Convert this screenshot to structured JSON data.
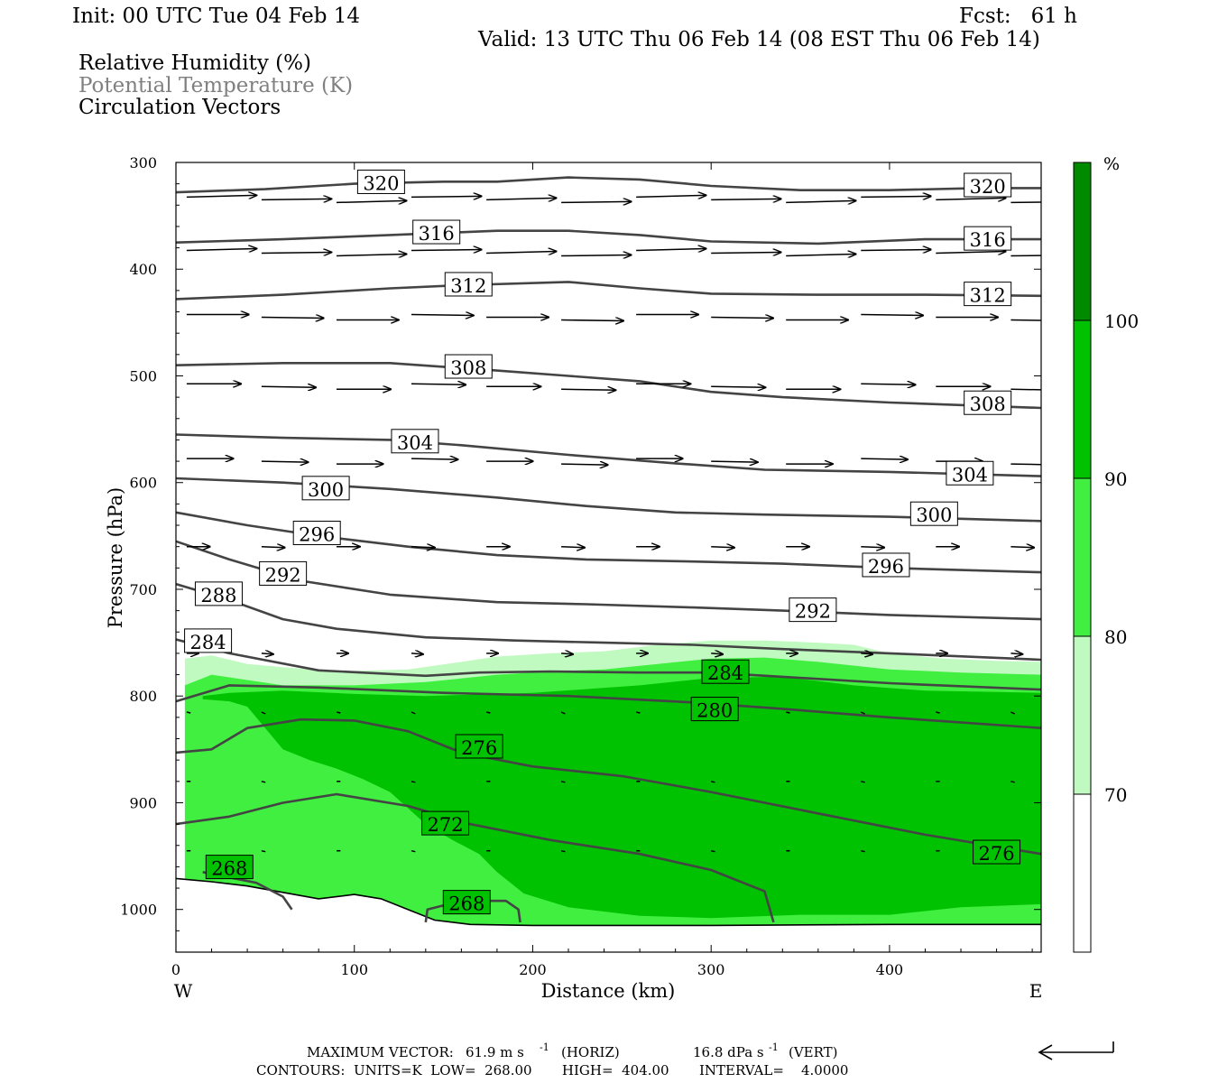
{
  "header": {
    "init": "Init: 00 UTC Tue 04 Feb 14",
    "fcst": "Fcst:   61 h",
    "valid": "Valid: 13 UTC Thu 06 Feb 14 (08 EST Thu 06 Feb 14)",
    "fields": [
      {
        "text": "Relative Humidity (%)",
        "color": "#000000"
      },
      {
        "text": "Potential Temperature (K)",
        "color": "#808080"
      },
      {
        "text": "Circulation Vectors",
        "color": "#000000"
      }
    ]
  },
  "footer": {
    "max_vector_label": "MAXIMUM VECTOR:",
    "horiz_value": "61.9 m s",
    "horiz_unit": "(HORIZ)",
    "vert_value": "16.8 dPa s",
    "vert_unit": "(VERT)",
    "exponent": "-1",
    "contours_line": "CONTOURS:  UNITS=K  LOW=  268.00       HIGH=  404.00       INTERVAL=    4.0000"
  },
  "colors": {
    "rh70": "#c0fac0",
    "rh80": "#40ef40",
    "rh90": "#00c200",
    "rh100": "#008a00",
    "theta": "#444444"
  },
  "chart_data": {
    "type": "cross-section",
    "xlabel": "Distance (km)",
    "ylabel": "Pressure (hPa)",
    "xlim": [
      0,
      485
    ],
    "ylim": [
      300,
      1040
    ],
    "y_inverted": true,
    "x_ticks": [
      0,
      100,
      200,
      300,
      400
    ],
    "y_ticks": [
      300,
      400,
      500,
      600,
      700,
      800,
      900,
      1000
    ],
    "west_label": "W",
    "east_label": "E",
    "colorbar": {
      "unit": "%",
      "levels": [
        70,
        80,
        90,
        100
      ],
      "colors": [
        "#ffffff",
        "#c0fac0",
        "#40ef40",
        "#00c200",
        "#008a00"
      ]
    },
    "ground": [
      [
        0,
        971
      ],
      [
        20,
        974
      ],
      [
        40,
        978
      ],
      [
        60,
        984
      ],
      [
        80,
        990
      ],
      [
        100,
        986
      ],
      [
        115,
        990
      ],
      [
        130,
        1000
      ],
      [
        145,
        1010
      ],
      [
        165,
        1014
      ],
      [
        200,
        1015
      ],
      [
        300,
        1015
      ],
      [
        400,
        1014
      ],
      [
        485,
        1014
      ]
    ],
    "rh_regions": [
      {
        "level": 70,
        "top": [
          [
            5,
            765
          ],
          [
            20,
            762
          ],
          [
            40,
            770
          ],
          [
            60,
            773
          ],
          [
            90,
            777
          ],
          [
            130,
            775
          ],
          [
            160,
            768
          ],
          [
            180,
            763
          ],
          [
            210,
            760
          ],
          [
            240,
            758
          ],
          [
            270,
            752
          ],
          [
            300,
            748
          ],
          [
            330,
            748
          ],
          [
            360,
            750
          ],
          [
            380,
            752
          ],
          [
            400,
            760
          ],
          [
            430,
            765
          ],
          [
            460,
            767
          ],
          [
            485,
            768
          ]
        ]
      },
      {
        "level": 80,
        "top": [
          [
            5,
            790
          ],
          [
            20,
            780
          ],
          [
            40,
            785
          ],
          [
            60,
            790
          ],
          [
            100,
            790
          ],
          [
            140,
            787
          ],
          [
            180,
            780
          ],
          [
            210,
            777
          ],
          [
            240,
            775
          ],
          [
            270,
            770
          ],
          [
            300,
            765
          ],
          [
            330,
            764
          ],
          [
            360,
            768
          ],
          [
            400,
            775
          ],
          [
            440,
            778
          ],
          [
            485,
            780
          ]
        ]
      },
      {
        "level": 90,
        "top": [
          [
            15,
            800
          ],
          [
            30,
            797
          ],
          [
            60,
            795
          ],
          [
            100,
            798
          ],
          [
            140,
            800
          ],
          [
            200,
            797
          ],
          [
            260,
            790
          ],
          [
            300,
            783
          ],
          [
            340,
            782
          ],
          [
            380,
            790
          ],
          [
            420,
            795
          ],
          [
            485,
            797
          ]
        ],
        "bottom": [
          [
            485,
            995
          ],
          [
            440,
            998
          ],
          [
            400,
            1005
          ],
          [
            350,
            1005
          ],
          [
            300,
            1008
          ],
          [
            260,
            1006
          ],
          [
            220,
            998
          ],
          [
            195,
            985
          ],
          [
            180,
            965
          ],
          [
            170,
            948
          ],
          [
            155,
            935
          ],
          [
            140,
            920
          ],
          [
            130,
            905
          ],
          [
            120,
            890
          ],
          [
            105,
            878
          ],
          [
            90,
            868
          ],
          [
            75,
            860
          ],
          [
            60,
            850
          ],
          [
            50,
            830
          ],
          [
            40,
            810
          ],
          [
            30,
            805
          ],
          [
            15,
            803
          ]
        ]
      },
      {
        "level": 100,
        "bottom": []
      }
    ],
    "theta_contours": [
      {
        "value": 320,
        "pts": [
          [
            0,
            328
          ],
          [
            50,
            325
          ],
          [
            100,
            320
          ],
          [
            150,
            318
          ],
          [
            180,
            318
          ],
          [
            220,
            314
          ],
          [
            260,
            316
          ],
          [
            300,
            322
          ],
          [
            350,
            326
          ],
          [
            400,
            326
          ],
          [
            450,
            324
          ],
          [
            485,
            324
          ]
        ],
        "label_at": [
          [
            115,
            319
          ],
          [
            455,
            322
          ]
        ]
      },
      {
        "value": 316,
        "pts": [
          [
            0,
            375
          ],
          [
            60,
            372
          ],
          [
            120,
            368
          ],
          [
            180,
            364
          ],
          [
            220,
            364
          ],
          [
            260,
            368
          ],
          [
            300,
            374
          ],
          [
            360,
            376
          ],
          [
            420,
            372
          ],
          [
            485,
            372
          ]
        ],
        "label_at": [
          [
            146,
            366
          ],
          [
            455,
            372
          ]
        ]
      },
      {
        "value": 312,
        "pts": [
          [
            0,
            428
          ],
          [
            60,
            424
          ],
          [
            120,
            418
          ],
          [
            160,
            415
          ],
          [
            220,
            412
          ],
          [
            260,
            418
          ],
          [
            300,
            423
          ],
          [
            360,
            424
          ],
          [
            420,
            424
          ],
          [
            485,
            425
          ]
        ],
        "label_at": [
          [
            164,
            415
          ],
          [
            455,
            424
          ]
        ]
      },
      {
        "value": 308,
        "pts": [
          [
            0,
            490
          ],
          [
            60,
            488
          ],
          [
            120,
            488
          ],
          [
            180,
            495
          ],
          [
            220,
            500
          ],
          [
            260,
            505
          ],
          [
            300,
            515
          ],
          [
            340,
            520
          ],
          [
            400,
            525
          ],
          [
            485,
            530
          ]
        ],
        "label_at": [
          [
            164,
            492
          ],
          [
            455,
            526
          ]
        ]
      },
      {
        "value": 304,
        "pts": [
          [
            0,
            555
          ],
          [
            60,
            558
          ],
          [
            120,
            560
          ],
          [
            160,
            565
          ],
          [
            220,
            574
          ],
          [
            280,
            582
          ],
          [
            330,
            588
          ],
          [
            400,
            590
          ],
          [
            485,
            594
          ]
        ],
        "label_at": [
          [
            134,
            562
          ],
          [
            445,
            592
          ]
        ]
      },
      {
        "value": 300,
        "pts": [
          [
            0,
            596
          ],
          [
            60,
            600
          ],
          [
            120,
            606
          ],
          [
            180,
            614
          ],
          [
            230,
            622
          ],
          [
            280,
            628
          ],
          [
            330,
            630
          ],
          [
            400,
            632
          ],
          [
            485,
            636
          ]
        ],
        "label_at": [
          [
            84,
            606
          ],
          [
            425,
            630
          ]
        ]
      },
      {
        "value": 296,
        "pts": [
          [
            0,
            628
          ],
          [
            40,
            640
          ],
          [
            80,
            650
          ],
          [
            130,
            660
          ],
          [
            180,
            668
          ],
          [
            230,
            672
          ],
          [
            290,
            674
          ],
          [
            340,
            676
          ],
          [
            400,
            680
          ],
          [
            485,
            684
          ]
        ],
        "label_at": [
          [
            79,
            648
          ],
          [
            398,
            678
          ]
        ]
      },
      {
        "value": 292,
        "pts": [
          [
            0,
            655
          ],
          [
            30,
            672
          ],
          [
            70,
            692
          ],
          [
            120,
            705
          ],
          [
            180,
            712
          ],
          [
            230,
            714
          ],
          [
            290,
            717
          ],
          [
            340,
            720
          ],
          [
            400,
            724
          ],
          [
            485,
            728
          ]
        ],
        "label_at": [
          [
            60,
            686
          ],
          [
            357,
            720
          ]
        ]
      },
      {
        "value": 288,
        "pts": [
          [
            0,
            695
          ],
          [
            30,
            710
          ],
          [
            60,
            728
          ],
          [
            90,
            737
          ],
          [
            140,
            745
          ],
          [
            190,
            748
          ],
          [
            240,
            750
          ],
          [
            290,
            752
          ],
          [
            340,
            756
          ],
          [
            400,
            760
          ],
          [
            485,
            766
          ]
        ],
        "label_at": [
          [
            24,
            705
          ]
        ]
      },
      {
        "value": 284,
        "pts": [
          [
            0,
            747
          ],
          [
            30,
            760
          ],
          [
            80,
            776
          ],
          [
            140,
            781
          ],
          [
            170,
            778
          ],
          [
            210,
            777
          ],
          [
            260,
            778
          ],
          [
            300,
            778
          ],
          [
            340,
            782
          ],
          [
            400,
            788
          ],
          [
            485,
            794
          ]
        ],
        "label_at": [
          [
            18,
            749
          ],
          [
            308,
            778
          ]
        ]
      },
      {
        "value": 280,
        "pts": [
          [
            0,
            805
          ],
          [
            30,
            790
          ],
          [
            80,
            792
          ],
          [
            150,
            797
          ],
          [
            220,
            800
          ],
          [
            290,
            806
          ],
          [
            340,
            812
          ],
          [
            400,
            820
          ],
          [
            485,
            830
          ]
        ],
        "label_at": [
          [
            302,
            813
          ]
        ]
      },
      {
        "value": 276,
        "pts": [
          [
            0,
            853
          ],
          [
            20,
            850
          ],
          [
            40,
            830
          ],
          [
            70,
            822
          ],
          [
            100,
            823
          ],
          [
            130,
            833
          ],
          [
            160,
            853
          ],
          [
            200,
            866
          ],
          [
            250,
            875
          ],
          [
            300,
            890
          ],
          [
            360,
            910
          ],
          [
            420,
            930
          ],
          [
            485,
            948
          ]
        ],
        "label_at": [
          [
            170,
            848
          ],
          [
            460,
            947
          ]
        ]
      },
      {
        "value": 272,
        "pts": [
          [
            0,
            920
          ],
          [
            30,
            913
          ],
          [
            60,
            900
          ],
          [
            90,
            892
          ],
          [
            130,
            903
          ],
          [
            165,
            920
          ],
          [
            210,
            935
          ],
          [
            260,
            948
          ],
          [
            300,
            963
          ],
          [
            330,
            983
          ],
          [
            335,
            1012
          ]
        ],
        "label_at": [
          [
            151,
            920
          ]
        ]
      },
      {
        "value": 268,
        "pts": [
          [
            15,
            965
          ],
          [
            45,
            975
          ],
          [
            60,
            988
          ],
          [
            65,
            1000
          ]
        ],
        "label_at": [
          [
            30,
            961
          ]
        ]
      },
      {
        "value": 268,
        "pts": [
          [
            140,
            1012
          ],
          [
            141,
            1000
          ],
          [
            160,
            992
          ],
          [
            185,
            992
          ],
          [
            192,
            1000
          ],
          [
            193,
            1012
          ]
        ],
        "label_at": [
          [
            163,
            994
          ]
        ]
      }
    ],
    "vector_rows": [
      {
        "p": 335,
        "len": 0.18,
        "dy": -2
      },
      {
        "p": 385,
        "len": 0.18,
        "dy": -2
      },
      {
        "p": 445,
        "len": 0.16,
        "dy": 0
      },
      {
        "p": 510,
        "len": 0.14,
        "dy": 0
      },
      {
        "p": 580,
        "len": 0.12,
        "dy": 0
      },
      {
        "p": 660,
        "len": 0.06,
        "dy": 0
      },
      {
        "p": 760,
        "len": 0.03,
        "dy": 0
      },
      {
        "p": 815,
        "len": 0.01,
        "dy": 1
      },
      {
        "p": 880,
        "len": 0.01,
        "dy": 0
      },
      {
        "p": 945,
        "len": 0.01,
        "dy": 0
      }
    ],
    "max_vector_horiz": 61.9,
    "max_vector_vert": 16.8
  }
}
